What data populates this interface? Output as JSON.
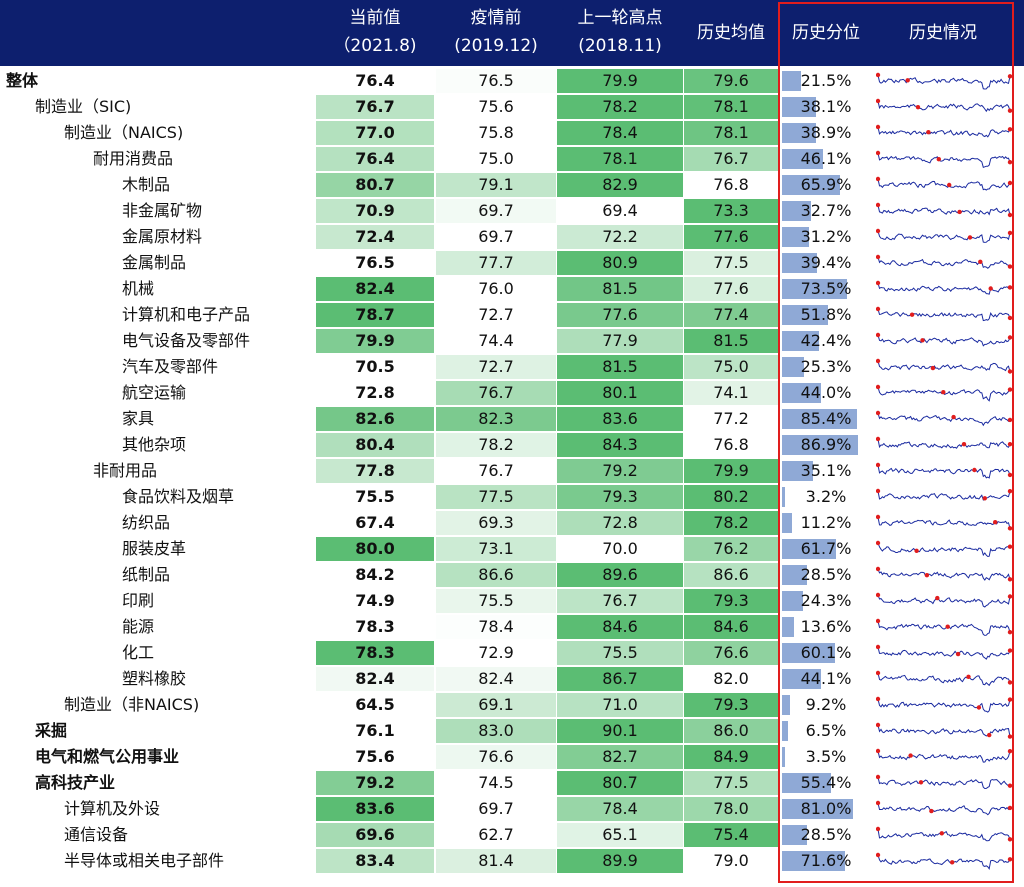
{
  "colors": {
    "header_bg": "#0d1f6e",
    "heat_low": "#ffffff",
    "heat_high": "#5bbd73",
    "percentile_bar": "#8fa9d6",
    "spark_line": "#1a2aa0",
    "spark_marker": "#e11d1d",
    "highlight_box": "#e11d1d"
  },
  "header": {
    "current": {
      "line1": "当前值",
      "line2": "（2021.8)"
    },
    "pre_covid": {
      "line1": "疫情前",
      "line2": "(2019.12)"
    },
    "last_peak": {
      "line1": "上一轮高点",
      "line2": "(2018.11)"
    },
    "hist_mean": "历史均值",
    "hist_pct": "历史分位",
    "hist_trend": "历史情况"
  },
  "chart_data": {
    "type": "table",
    "columns": [
      "当前值",
      "疫情前",
      "上一轮高点",
      "历史均值",
      "历史分位",
      "历史情况"
    ],
    "rows": [
      {
        "name": "整体",
        "indent": 0,
        "bold": true,
        "current": "76.4",
        "pre": "76.5",
        "peak": "79.9",
        "mean": "79.6",
        "pct": "21.5%",
        "pct_value": 21.5
      },
      {
        "name": "制造业（SIC)",
        "indent": 1,
        "bold": false,
        "current": "76.7",
        "pre": "75.6",
        "peak": "78.2",
        "mean": "78.1",
        "pct": "38.1%",
        "pct_value": 38.1
      },
      {
        "name": "制造业（NAICS)",
        "indent": 2,
        "bold": false,
        "current": "77.0",
        "pre": "75.8",
        "peak": "78.4",
        "mean": "78.1",
        "pct": "38.9%",
        "pct_value": 38.9
      },
      {
        "name": "耐用消费品",
        "indent": 3,
        "bold": false,
        "current": "76.4",
        "pre": "75.0",
        "peak": "78.1",
        "mean": "76.7",
        "pct": "46.1%",
        "pct_value": 46.1
      },
      {
        "name": "木制品",
        "indent": 4,
        "bold": false,
        "current": "80.7",
        "pre": "79.1",
        "peak": "82.9",
        "mean": "76.8",
        "pct": "65.9%",
        "pct_value": 65.9
      },
      {
        "name": "非金属矿物",
        "indent": 4,
        "bold": false,
        "current": "70.9",
        "pre": "69.7",
        "peak": "69.4",
        "mean": "73.3",
        "pct": "32.7%",
        "pct_value": 32.7
      },
      {
        "name": "金属原材料",
        "indent": 4,
        "bold": false,
        "current": "72.4",
        "pre": "69.7",
        "peak": "72.2",
        "mean": "77.6",
        "pct": "31.2%",
        "pct_value": 31.2
      },
      {
        "name": "金属制品",
        "indent": 4,
        "bold": false,
        "current": "76.5",
        "pre": "77.7",
        "peak": "80.9",
        "mean": "77.5",
        "pct": "39.4%",
        "pct_value": 39.4
      },
      {
        "name": "机械",
        "indent": 4,
        "bold": false,
        "current": "82.4",
        "pre": "76.0",
        "peak": "81.5",
        "mean": "77.6",
        "pct": "73.5%",
        "pct_value": 73.5
      },
      {
        "name": "计算机和电子产品",
        "indent": 4,
        "bold": false,
        "current": "78.7",
        "pre": "72.7",
        "peak": "77.6",
        "mean": "77.4",
        "pct": "51.8%",
        "pct_value": 51.8
      },
      {
        "name": "电气设备及零部件",
        "indent": 4,
        "bold": false,
        "current": "79.9",
        "pre": "74.4",
        "peak": "77.9",
        "mean": "81.5",
        "pct": "42.4%",
        "pct_value": 42.4
      },
      {
        "name": "汽车及零部件",
        "indent": 4,
        "bold": false,
        "current": "70.5",
        "pre": "72.7",
        "peak": "81.5",
        "mean": "75.0",
        "pct": "25.3%",
        "pct_value": 25.3
      },
      {
        "name": "航空运输",
        "indent": 4,
        "bold": false,
        "current": "72.8",
        "pre": "76.7",
        "peak": "80.1",
        "mean": "74.1",
        "pct": "44.0%",
        "pct_value": 44.0
      },
      {
        "name": "家具",
        "indent": 4,
        "bold": false,
        "current": "82.6",
        "pre": "82.3",
        "peak": "83.6",
        "mean": "77.2",
        "pct": "85.4%",
        "pct_value": 85.4
      },
      {
        "name": "其他杂项",
        "indent": 4,
        "bold": false,
        "current": "80.4",
        "pre": "78.2",
        "peak": "84.3",
        "mean": "76.8",
        "pct": "86.9%",
        "pct_value": 86.9
      },
      {
        "name": "非耐用品",
        "indent": 3,
        "bold": false,
        "current": "77.8",
        "pre": "76.7",
        "peak": "79.2",
        "mean": "79.9",
        "pct": "35.1%",
        "pct_value": 35.1
      },
      {
        "name": "食品饮料及烟草",
        "indent": 4,
        "bold": false,
        "current": "75.5",
        "pre": "77.5",
        "peak": "79.3",
        "mean": "80.2",
        "pct": "3.2%",
        "pct_value": 3.2
      },
      {
        "name": "纺织品",
        "indent": 4,
        "bold": false,
        "current": "67.4",
        "pre": "69.3",
        "peak": "72.8",
        "mean": "78.2",
        "pct": "11.2%",
        "pct_value": 11.2
      },
      {
        "name": "服装皮革",
        "indent": 4,
        "bold": false,
        "current": "80.0",
        "pre": "73.1",
        "peak": "70.0",
        "mean": "76.2",
        "pct": "61.7%",
        "pct_value": 61.7
      },
      {
        "name": "纸制品",
        "indent": 4,
        "bold": false,
        "current": "84.2",
        "pre": "86.6",
        "peak": "89.6",
        "mean": "86.6",
        "pct": "28.5%",
        "pct_value": 28.5
      },
      {
        "name": "印刷",
        "indent": 4,
        "bold": false,
        "current": "74.9",
        "pre": "75.5",
        "peak": "76.7",
        "mean": "79.3",
        "pct": "24.3%",
        "pct_value": 24.3
      },
      {
        "name": "能源",
        "indent": 4,
        "bold": false,
        "current": "78.3",
        "pre": "78.4",
        "peak": "84.6",
        "mean": "84.6",
        "pct": "13.6%",
        "pct_value": 13.6
      },
      {
        "name": "化工",
        "indent": 4,
        "bold": false,
        "current": "78.3",
        "pre": "72.9",
        "peak": "75.5",
        "mean": "76.6",
        "pct": "60.1%",
        "pct_value": 60.1
      },
      {
        "name": "塑料橡胶",
        "indent": 4,
        "bold": false,
        "current": "82.4",
        "pre": "82.4",
        "peak": "86.7",
        "mean": "82.0",
        "pct": "44.1%",
        "pct_value": 44.1
      },
      {
        "name": "制造业（非NAICS)",
        "indent": 2,
        "bold": false,
        "current": "64.5",
        "pre": "69.1",
        "peak": "71.0",
        "mean": "79.3",
        "pct": "9.2%",
        "pct_value": 9.2
      },
      {
        "name": "采掘",
        "indent": 1,
        "bold": true,
        "current": "76.1",
        "pre": "83.0",
        "peak": "90.1",
        "mean": "86.0",
        "pct": "6.5%",
        "pct_value": 6.5
      },
      {
        "name": "电气和燃气公用事业",
        "indent": 1,
        "bold": true,
        "current": "75.6",
        "pre": "76.6",
        "peak": "82.7",
        "mean": "84.9",
        "pct": "3.5%",
        "pct_value": 3.5
      },
      {
        "name": "高科技产业",
        "indent": 1,
        "bold": true,
        "current": "79.2",
        "pre": "74.5",
        "peak": "80.7",
        "mean": "77.5",
        "pct": "55.4%",
        "pct_value": 55.4
      },
      {
        "name": "计算机及外设",
        "indent": 2,
        "bold": false,
        "current": "83.6",
        "pre": "69.7",
        "peak": "78.4",
        "mean": "78.0",
        "pct": "81.0%",
        "pct_value": 81.0
      },
      {
        "name": "通信设备",
        "indent": 2,
        "bold": false,
        "current": "69.6",
        "pre": "62.7",
        "peak": "65.1",
        "mean": "75.4",
        "pct": "28.5%",
        "pct_value": 28.5
      },
      {
        "name": "半导体或相关电子部件",
        "indent": 2,
        "bold": false,
        "current": "83.4",
        "pre": "81.4",
        "peak": "89.9",
        "mean": "79.0",
        "pct": "71.6%",
        "pct_value": 71.6
      }
    ]
  }
}
